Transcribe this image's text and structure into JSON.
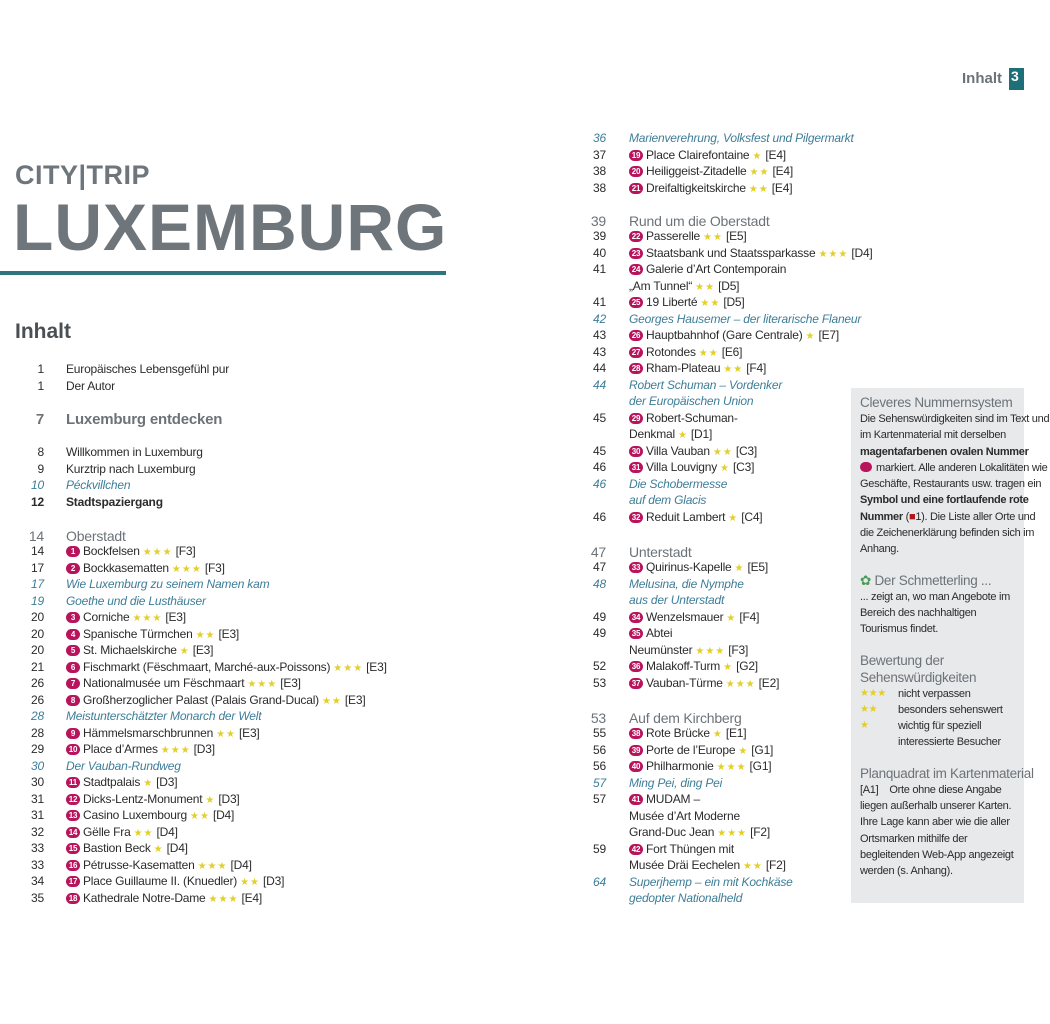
{
  "running_head": {
    "label": "Inhalt",
    "page": "3"
  },
  "brand": {
    "line1": "CITY|TRIP",
    "line2": "LUXEMBURG"
  },
  "toc_title": "Inhalt",
  "colors": {
    "accent": "#2f7580",
    "badge": "#b8145c",
    "star": "#e3cf2a",
    "italic": "#3d7d98"
  },
  "left_sections": [
    {
      "rows": [
        {
          "page": "1",
          "lines": [
            "Europäisches Lebensgefühl pur"
          ]
        },
        {
          "page": "1",
          "lines": [
            "Der Autor"
          ]
        }
      ]
    },
    {
      "rows": [
        {
          "page": "7",
          "lines": [
            "Luxemburg entdecken"
          ],
          "type": "big"
        }
      ]
    },
    {
      "rows": [
        {
          "page": "8",
          "lines": [
            "Willkommen in Luxemburg"
          ]
        },
        {
          "page": "9",
          "lines": [
            "Kurztrip nach Luxemburg"
          ]
        },
        {
          "page": "10",
          "lines": [
            "Péckvillchen"
          ],
          "type": "it"
        },
        {
          "page": "12",
          "lines": [
            "Stadtspaziergang"
          ],
          "type": "bold"
        }
      ]
    },
    {
      "rows": [
        {
          "page": "14",
          "lines": [
            "Oberstadt"
          ],
          "type": "head"
        },
        {
          "page": "14",
          "badge": "1",
          "lines": [
            "Bockfelsen"
          ],
          "stars": 3,
          "grid": "[F3]"
        },
        {
          "page": "17",
          "badge": "2",
          "lines": [
            "Bockkasematten"
          ],
          "stars": 3,
          "grid": "[F3]"
        },
        {
          "page": "17",
          "lines": [
            "Wie Luxemburg zu seinem Namen kam"
          ],
          "type": "it"
        },
        {
          "page": "19",
          "lines": [
            "Goethe und die Lusthäuser"
          ],
          "type": "it"
        },
        {
          "page": "20",
          "badge": "3",
          "lines": [
            "Corniche"
          ],
          "stars": 3,
          "grid": "[E3]"
        },
        {
          "page": "20",
          "badge": "4",
          "lines": [
            "Spanische Türmchen"
          ],
          "stars": 2,
          "grid": "[E3]"
        },
        {
          "page": "20",
          "badge": "5",
          "lines": [
            "St. Michaelskirche"
          ],
          "stars": 1,
          "grid": "[E3]"
        },
        {
          "page": "21",
          "badge": "6",
          "lines": [
            "Fischmarkt (Fëschmaart, Marché-aux-Poissons)"
          ],
          "stars": 3,
          "grid": "[E3]"
        },
        {
          "page": "26",
          "badge": "7",
          "lines": [
            "Nationalmusée um Fëschmaart"
          ],
          "stars": 3,
          "grid": "[E3]"
        },
        {
          "page": "26",
          "badge": "8",
          "lines": [
            "Großherzoglicher Palast (Palais Grand-Ducal)"
          ],
          "stars": 2,
          "grid": "[E3]"
        },
        {
          "page": "28",
          "lines": [
            "Meistunterschätzter Monarch der Welt"
          ],
          "type": "it"
        },
        {
          "page": "28",
          "badge": "9",
          "lines": [
            "Hämmelsmarschbrunnen"
          ],
          "stars": 2,
          "grid": "[E3]"
        },
        {
          "page": "29",
          "badge": "10",
          "lines": [
            "Place d’Armes"
          ],
          "stars": 3,
          "grid": "[D3]"
        },
        {
          "page": "30",
          "lines": [
            "Der Vauban-Rundweg"
          ],
          "type": "it"
        },
        {
          "page": "30",
          "badge": "11",
          "lines": [
            "Stadtpalais"
          ],
          "stars": 1,
          "grid": "[D3]"
        },
        {
          "page": "31",
          "badge": "12",
          "lines": [
            "Dicks-Lentz-Monument"
          ],
          "stars": 1,
          "grid": "[D3]"
        },
        {
          "page": "31",
          "badge": "13",
          "lines": [
            "Casino Luxembourg"
          ],
          "stars": 2,
          "grid": "[D4]"
        },
        {
          "page": "32",
          "badge": "14",
          "lines": [
            "Gëlle Fra"
          ],
          "stars": 2,
          "grid": "[D4]"
        },
        {
          "page": "33",
          "badge": "15",
          "lines": [
            "Bastion Beck"
          ],
          "stars": 1,
          "grid": "[D4]"
        },
        {
          "page": "33",
          "badge": "16",
          "lines": [
            "Pétrusse-Kasematten"
          ],
          "stars": 3,
          "grid": "[D4]"
        },
        {
          "page": "34",
          "badge": "17",
          "lines": [
            "Place Guillaume II. (Knuedler)"
          ],
          "stars": 2,
          "grid": "[D3]"
        },
        {
          "page": "35",
          "badge": "18",
          "lines": [
            "Kathedrale Notre-Dame"
          ],
          "stars": 3,
          "grid": "[E4]"
        }
      ]
    }
  ],
  "right_sections": [
    {
      "rows": [
        {
          "page": "36",
          "lines": [
            "Marienverehrung, Volksfest und Pilgermarkt"
          ],
          "type": "it"
        },
        {
          "page": "37",
          "badge": "19",
          "lines": [
            "Place Clairefontaine"
          ],
          "stars": 1,
          "grid": "[E4]"
        },
        {
          "page": "38",
          "badge": "20",
          "lines": [
            "Heiliggeist-Zitadelle"
          ],
          "stars": 2,
          "grid": "[E4]"
        },
        {
          "page": "38",
          "badge": "21",
          "lines": [
            "Dreifaltigkeitskirche"
          ],
          "stars": 2,
          "grid": "[E4]"
        }
      ]
    },
    {
      "rows": [
        {
          "page": "39",
          "lines": [
            "Rund um die Oberstadt"
          ],
          "type": "head"
        },
        {
          "page": "39",
          "badge": "22",
          "lines": [
            "Passerelle"
          ],
          "stars": 2,
          "grid": "[E5]"
        },
        {
          "page": "40",
          "badge": "23",
          "lines": [
            "Staatsbank und Staatssparkasse"
          ],
          "stars": 3,
          "grid": "[D4]"
        },
        {
          "page": "41",
          "badge": "24",
          "lines": [
            "Galerie d’Art Contemporain",
            "„Am Tunnel“"
          ],
          "stars": 2,
          "grid": "[D5]"
        },
        {
          "page": "41",
          "badge": "25",
          "lines": [
            "19 Liberté"
          ],
          "stars": 2,
          "grid": "[D5]"
        },
        {
          "page": "42",
          "lines": [
            "Georges Hausemer – der literarische Flaneur"
          ],
          "type": "it"
        },
        {
          "page": "43",
          "badge": "26",
          "lines": [
            "Hauptbahnhof (Gare Centrale)"
          ],
          "stars": 1,
          "grid": "[E7]"
        },
        {
          "page": "43",
          "badge": "27",
          "lines": [
            "Rotondes"
          ],
          "stars": 2,
          "grid": "[E6]"
        },
        {
          "page": "44",
          "badge": "28",
          "lines": [
            "Rham-Plateau"
          ],
          "stars": 2,
          "grid": "[F4]"
        },
        {
          "page": "44",
          "lines": [
            "Robert Schuman – Vordenker",
            "der Europäischen Union"
          ],
          "type": "it"
        },
        {
          "page": "45",
          "badge": "29",
          "lines": [
            "Robert-Schuman-",
            "Denkmal"
          ],
          "stars": 1,
          "grid": "[D1]"
        },
        {
          "page": "45",
          "badge": "30",
          "lines": [
            "Villa Vauban"
          ],
          "stars": 2,
          "grid": "[C3]"
        },
        {
          "page": "46",
          "badge": "31",
          "lines": [
            "Villa Louvigny"
          ],
          "stars": 1,
          "grid": "[C3]"
        },
        {
          "page": "46",
          "lines": [
            "Die Schobermesse",
            "auf dem Glacis"
          ],
          "type": "it"
        },
        {
          "page": "46",
          "badge": "32",
          "lines": [
            "Reduit Lambert"
          ],
          "stars": 1,
          "grid": "[C4]"
        }
      ]
    },
    {
      "rows": [
        {
          "page": "47",
          "lines": [
            "Unterstadt"
          ],
          "type": "head"
        },
        {
          "page": "47",
          "badge": "33",
          "lines": [
            "Quirinus-Kapelle"
          ],
          "stars": 1,
          "grid": "[E5]"
        },
        {
          "page": "48",
          "lines": [
            "Melusina, die Nymphe",
            "aus der Unterstadt"
          ],
          "type": "it"
        },
        {
          "page": "49",
          "badge": "34",
          "lines": [
            "Wenzelsmauer"
          ],
          "stars": 1,
          "grid": "[F4]"
        },
        {
          "page": "49",
          "badge": "35",
          "lines": [
            "Abtei",
            "Neumünster"
          ],
          "stars": 3,
          "grid": "[F3]"
        },
        {
          "page": "52",
          "badge": "36",
          "lines": [
            "Malakoff-Turm"
          ],
          "stars": 1,
          "grid": "[G2]"
        },
        {
          "page": "53",
          "badge": "37",
          "lines": [
            "Vauban-Türme"
          ],
          "stars": 3,
          "grid": "[E2]"
        }
      ]
    },
    {
      "rows": [
        {
          "page": "53",
          "lines": [
            "Auf dem Kirchberg"
          ],
          "type": "head"
        },
        {
          "page": "55",
          "badge": "38",
          "lines": [
            "Rote Brücke"
          ],
          "stars": 1,
          "grid": "[E1]"
        },
        {
          "page": "56",
          "badge": "39",
          "lines": [
            "Porte de l’Europe"
          ],
          "stars": 1,
          "grid": "[G1]"
        },
        {
          "page": "56",
          "badge": "40",
          "lines": [
            "Philharmonie"
          ],
          "stars": 3,
          "grid": "[G1]"
        },
        {
          "page": "57",
          "lines": [
            "Ming Pei, ding Pei"
          ],
          "type": "it"
        },
        {
          "page": "57",
          "badge": "41",
          "lines": [
            "MUDAM –",
            "Musée d’Art Moderne",
            "Grand-Duc Jean"
          ],
          "stars": 3,
          "grid": "[F2]"
        },
        {
          "page": "59",
          "badge": "42",
          "lines": [
            "Fort Thüngen mit",
            "Musée Dräi Eechelen"
          ],
          "stars": 2,
          "grid": "[F2]"
        },
        {
          "page": "64",
          "lines": [
            "Superjhemp – ein mit Kochkäse",
            "gedopter Nationalheld"
          ],
          "type": "it"
        }
      ]
    }
  ],
  "sidebar": {
    "numbering": {
      "title": "Cleveres Nummernsystem",
      "t1": "Die Sehenswürdigkeiten sind im Text und im Kartenmaterial mit derselben",
      "t2": "magentafarbenen ovalen Nummer",
      "t3": "markiert. Alle anderen Lokalitäten wie Geschäfte, Restaurants usw. tragen ein",
      "t4": "Symbol und eine fortlaufende rote Nummer",
      "t5": "(",
      "t6": "1). Die Liste aller Orte und die Zeichenerklärung befinden sich im Anhang."
    },
    "butterfly": {
      "title": "Der Schmetterling ...",
      "text": "... zeigt an, wo man Angebote im Bereich des nachhaltigen Tourismus findet."
    },
    "rating": {
      "title": "Bewertung der Sehenswürdigkeiten",
      "items": [
        {
          "stars": "★★★",
          "label": "nicht verpassen"
        },
        {
          "stars": "★★",
          "label": "besonders sehenswert"
        },
        {
          "stars": "★",
          "label": "wichtig für speziell interessierte Besucher"
        }
      ]
    },
    "grid": {
      "title": "Planquadrat im Kartenmaterial",
      "code": "[A1]",
      "text": "Orte ohne diese Angabe liegen außerhalb unserer Karten. Ihre Lage kann aber wie die aller Ortsmarken mithilfe der begleitenden Web-App angezeigt werden (s. Anhang)."
    }
  }
}
